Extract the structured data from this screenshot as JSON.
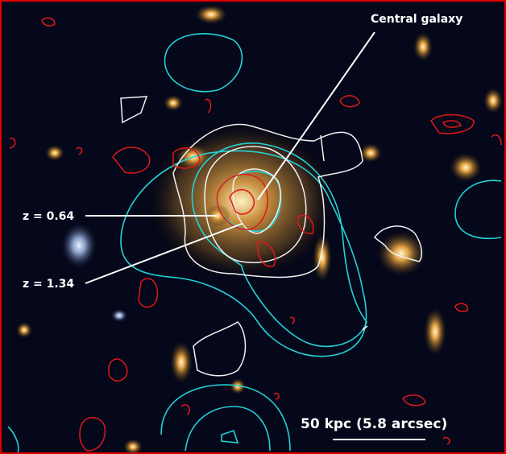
{
  "annotations": {
    "central_galaxy": "Central galaxy",
    "z_low": "z = 0.64",
    "z_high": "z = 1.34",
    "scale_bar": "50 kpc (5.8 arcsec)"
  }
}
